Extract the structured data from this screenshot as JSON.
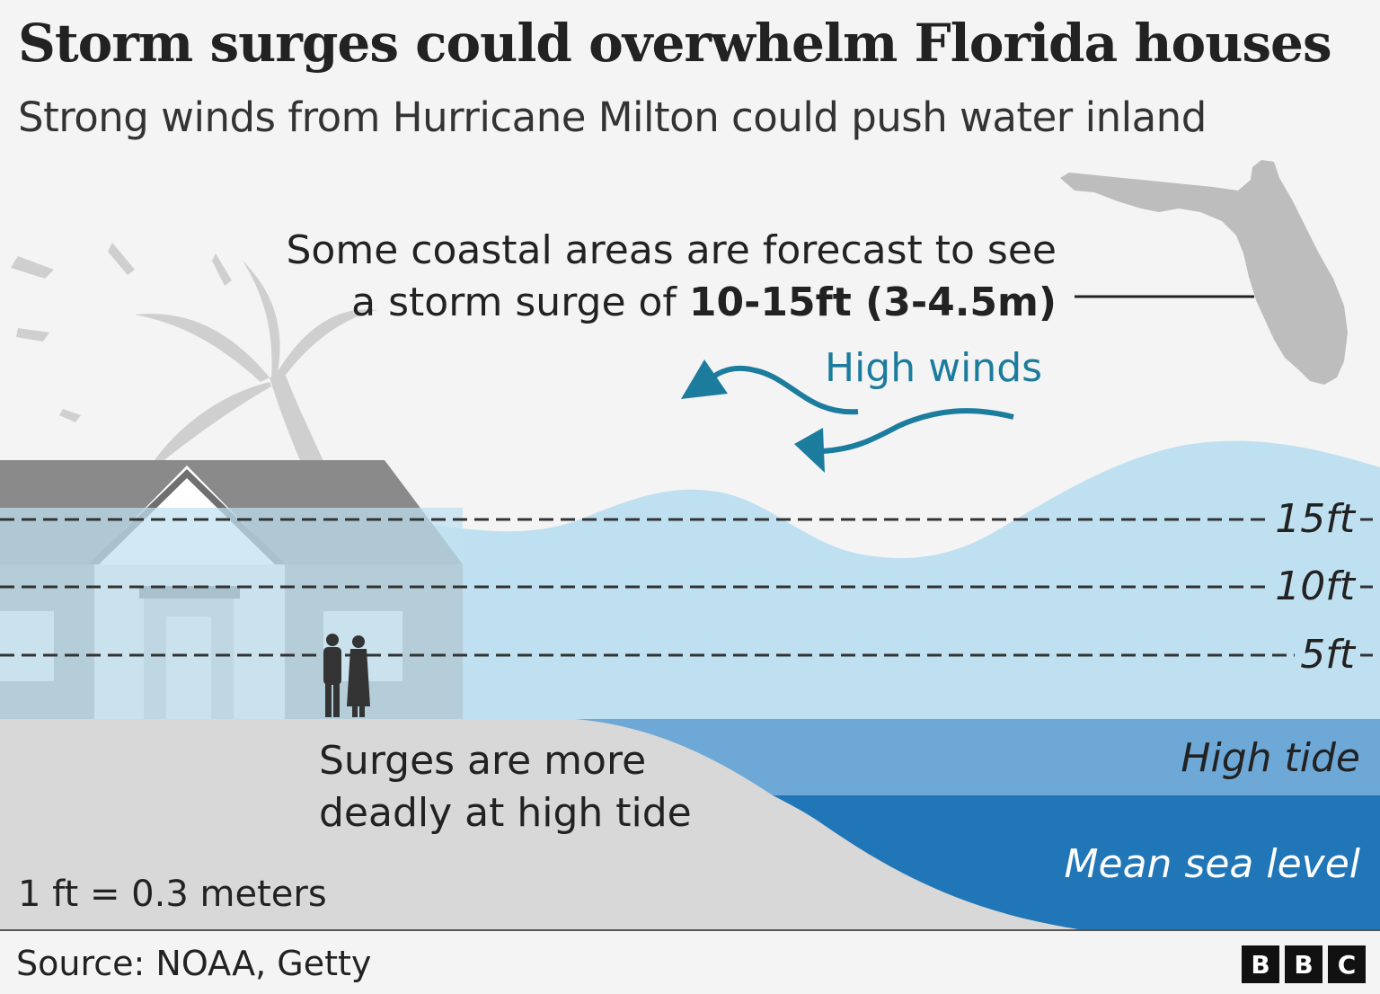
{
  "header": {
    "title": "Storm surges could overwhelm Florida houses",
    "subtitle": "Strong winds from Hurricane Milton could push water inland"
  },
  "callout": {
    "line1": "Some coastal areas are forecast to see",
    "line2_prefix": "a storm surge of ",
    "line2_bold": "10-15ft (3-4.5m)"
  },
  "winds": {
    "label": "High winds"
  },
  "levels": [
    {
      "label": "15ft"
    },
    {
      "label": "10ft"
    },
    {
      "label": "5ft"
    }
  ],
  "tides": {
    "high_tide": "High tide",
    "mean_sea_level": "Mean sea level"
  },
  "notes": {
    "surge_line1": "Surges are more",
    "surge_line2": "deadly at high tide",
    "conversion": "1 ft = 0.3 meters"
  },
  "footer": {
    "source": "Source: NOAA, Getty",
    "logo": [
      "B",
      "B",
      "C"
    ]
  },
  "colors": {
    "surge_water": "#bfe0f0",
    "high_tide": "#6ea8d6",
    "mean_sea_level": "#2176b8",
    "winds_arrow": "#1c7c9d",
    "ground": "#d8d8d8",
    "house": "#8a8a8a"
  },
  "icons": [
    "palm-tree-icon",
    "house-icon",
    "people-icon",
    "florida-map-icon",
    "wind-arrow-icon"
  ]
}
